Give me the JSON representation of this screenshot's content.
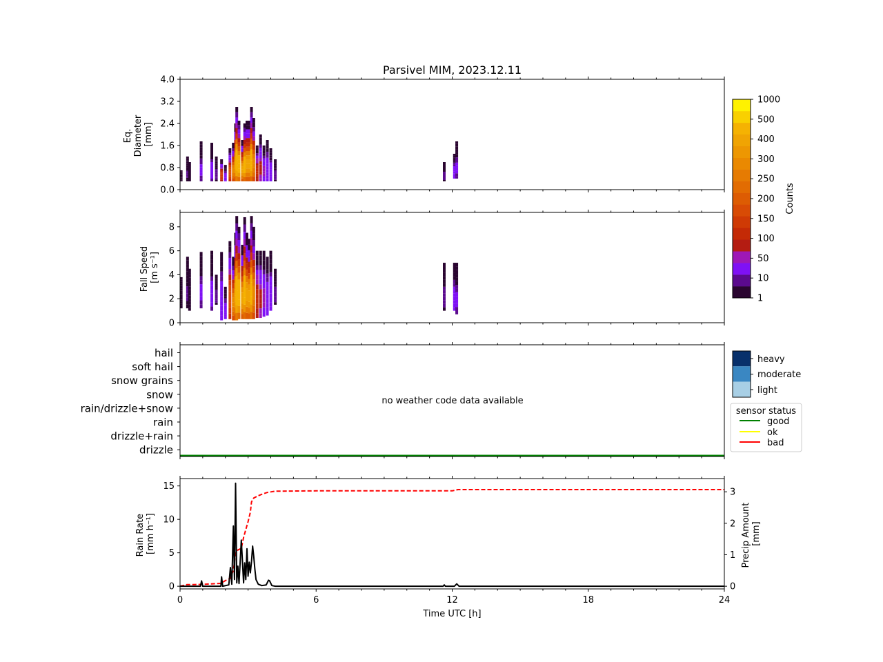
{
  "figure": {
    "title": "Parsivel MIM, 2023.12.11"
  },
  "chart_data": [
    {
      "type": "heatmap",
      "panel": "diameter",
      "ylabel_lines": [
        "Eq.",
        "Diameter",
        "[mm]"
      ],
      "ylim": [
        0,
        4.0
      ],
      "yticks": [
        "0.0",
        "0.8",
        "1.6",
        "2.4",
        "3.2",
        "4.0"
      ],
      "xlim": [
        0,
        24
      ],
      "columns": [
        {
          "t": 0.05,
          "dmin": 0.3,
          "dmax": 0.7,
          "peak": 1
        },
        {
          "t": 0.33,
          "dmin": 0.3,
          "dmax": 1.2,
          "peak": 6
        },
        {
          "t": 0.42,
          "dmin": 0.3,
          "dmax": 1.0,
          "peak": 4
        },
        {
          "t": 0.93,
          "dmin": 0.3,
          "dmax": 1.75,
          "peak": 12
        },
        {
          "t": 1.4,
          "dmin": 0.3,
          "dmax": 1.7,
          "peak": 15
        },
        {
          "t": 1.6,
          "dmin": 0.3,
          "dmax": 1.2,
          "peak": 8
        },
        {
          "t": 1.83,
          "dmin": 0.3,
          "dmax": 1.1,
          "peak": 120
        },
        {
          "t": 2.0,
          "dmin": 0.3,
          "dmax": 0.9,
          "peak": 20
        },
        {
          "t": 2.2,
          "dmin": 0.3,
          "dmax": 1.5,
          "peak": 150
        },
        {
          "t": 2.35,
          "dmin": 0.3,
          "dmax": 1.7,
          "peak": 250
        },
        {
          "t": 2.45,
          "dmin": 0.3,
          "dmax": 2.4,
          "peak": 300
        },
        {
          "t": 2.5,
          "dmin": 0.3,
          "dmax": 3.0,
          "peak": 400
        },
        {
          "t": 2.6,
          "dmin": 0.3,
          "dmax": 2.5,
          "peak": 350
        },
        {
          "t": 2.75,
          "dmin": 0.3,
          "dmax": 1.8,
          "peak": 300
        },
        {
          "t": 2.85,
          "dmin": 0.3,
          "dmax": 2.4,
          "peak": 350
        },
        {
          "t": 2.95,
          "dmin": 0.3,
          "dmax": 2.5,
          "peak": 300
        },
        {
          "t": 3.05,
          "dmin": 0.3,
          "dmax": 2.5,
          "peak": 300
        },
        {
          "t": 3.15,
          "dmin": 0.3,
          "dmax": 3.0,
          "peak": 350
        },
        {
          "t": 3.25,
          "dmin": 0.3,
          "dmax": 2.6,
          "peak": 250
        },
        {
          "t": 3.4,
          "dmin": 0.3,
          "dmax": 1.6,
          "peak": 100
        },
        {
          "t": 3.55,
          "dmin": 0.3,
          "dmax": 2.0,
          "peak": 60
        },
        {
          "t": 3.7,
          "dmin": 0.3,
          "dmax": 1.6,
          "peak": 40
        },
        {
          "t": 3.85,
          "dmin": 0.3,
          "dmax": 1.8,
          "peak": 30
        },
        {
          "t": 4.0,
          "dmin": 0.3,
          "dmax": 1.5,
          "peak": 25
        },
        {
          "t": 4.2,
          "dmin": 0.3,
          "dmax": 1.1,
          "peak": 8
        },
        {
          "t": 11.65,
          "dmin": 0.3,
          "dmax": 1.0,
          "peak": 8
        },
        {
          "t": 12.1,
          "dmin": 0.4,
          "dmax": 1.3,
          "peak": 20
        },
        {
          "t": 12.2,
          "dmin": 0.4,
          "dmax": 1.75,
          "peak": 12
        }
      ]
    },
    {
      "type": "heatmap",
      "panel": "fall-speed",
      "ylabel_lines": [
        "Fall Speed",
        "[m s⁻¹]"
      ],
      "ylim": [
        0,
        9.2
      ],
      "yticks": [
        "0",
        "2",
        "4",
        "6",
        "8"
      ],
      "xlim": [
        0,
        24
      ],
      "columns": [
        {
          "t": 0.05,
          "vmin": 1.2,
          "vmax": 3.8,
          "peak": 1
        },
        {
          "t": 0.33,
          "vmin": 1.2,
          "vmax": 5.5,
          "peak": 6
        },
        {
          "t": 0.42,
          "vmin": 1.0,
          "vmax": 4.5,
          "peak": 4
        },
        {
          "t": 0.93,
          "vmin": 1.2,
          "vmax": 5.9,
          "peak": 12
        },
        {
          "t": 1.4,
          "vmin": 1.0,
          "vmax": 6.0,
          "peak": 15
        },
        {
          "t": 1.6,
          "vmin": 1.5,
          "vmax": 4.0,
          "peak": 8
        },
        {
          "t": 1.83,
          "vmin": 0.2,
          "vmax": 5.9,
          "peak": 30
        },
        {
          "t": 2.0,
          "vmin": 0.3,
          "vmax": 3.0,
          "peak": 20
        },
        {
          "t": 2.2,
          "vmin": 0.3,
          "vmax": 6.8,
          "peak": 150
        },
        {
          "t": 2.35,
          "vmin": 0.2,
          "vmax": 5.5,
          "peak": 250
        },
        {
          "t": 2.45,
          "vmin": 0.2,
          "vmax": 7.5,
          "peak": 300
        },
        {
          "t": 2.5,
          "vmin": 0.2,
          "vmax": 8.9,
          "peak": 400
        },
        {
          "t": 2.6,
          "vmin": 0.3,
          "vmax": 8.0,
          "peak": 350
        },
        {
          "t": 2.75,
          "vmin": 0.3,
          "vmax": 6.5,
          "peak": 300
        },
        {
          "t": 2.85,
          "vmin": 0.3,
          "vmax": 8.8,
          "peak": 350
        },
        {
          "t": 2.95,
          "vmin": 0.3,
          "vmax": 7.5,
          "peak": 300
        },
        {
          "t": 3.05,
          "vmin": 0.3,
          "vmax": 7.0,
          "peak": 300
        },
        {
          "t": 3.15,
          "vmin": 0.3,
          "vmax": 8.9,
          "peak": 350
        },
        {
          "t": 3.25,
          "vmin": 0.3,
          "vmax": 8.0,
          "peak": 250
        },
        {
          "t": 3.4,
          "vmin": 0.4,
          "vmax": 6.0,
          "peak": 100
        },
        {
          "t": 3.55,
          "vmin": 0.4,
          "vmax": 6.0,
          "peak": 60
        },
        {
          "t": 3.7,
          "vmin": 0.5,
          "vmax": 6.0,
          "peak": 40
        },
        {
          "t": 3.85,
          "vmin": 0.6,
          "vmax": 5.5,
          "peak": 30
        },
        {
          "t": 4.0,
          "vmin": 1.0,
          "vmax": 6.0,
          "peak": 25
        },
        {
          "t": 4.2,
          "vmin": 1.5,
          "vmax": 4.5,
          "peak": 8
        },
        {
          "t": 11.65,
          "vmin": 1.0,
          "vmax": 5.0,
          "peak": 8
        },
        {
          "t": 12.1,
          "vmin": 1.0,
          "vmax": 5.0,
          "peak": 20
        },
        {
          "t": 12.2,
          "vmin": 0.7,
          "vmax": 5.0,
          "peak": 12
        }
      ]
    },
    {
      "type": "line",
      "panel": "weather-code",
      "categories": [
        "drizzle",
        "drizzle+rain",
        "rain",
        "rain/drizzle+snow",
        "snow",
        "snow grains",
        "soft hail",
        "hail"
      ],
      "message": "no weather code data available",
      "intensity_legend": [
        "heavy",
        "moderate",
        "light"
      ],
      "sensor_legend_title": "sensor status",
      "sensor_legend": [
        {
          "label": "good",
          "color": "#008000"
        },
        {
          "label": "ok",
          "color": "#ffff00"
        },
        {
          "label": "bad",
          "color": "#ff0000"
        }
      ],
      "sensor_status": [
        {
          "from": 0,
          "to": 24,
          "status": "good"
        }
      ],
      "xlim": [
        0,
        24
      ]
    },
    {
      "type": "line",
      "panel": "rain",
      "ylabel_lines": [
        "Rain Rate",
        "[mm h⁻¹]"
      ],
      "y2label_lines": [
        "Precip Amount",
        "[mm]"
      ],
      "ylim": [
        -0.4,
        16.1
      ],
      "y2lim": [
        -0.085,
        3.42
      ],
      "yticks": [
        "0",
        "5",
        "10",
        "15"
      ],
      "y2ticks": [
        "0",
        "1",
        "2",
        "3"
      ],
      "xlim": [
        0,
        24
      ],
      "xticks": [
        "0",
        "6",
        "12",
        "18",
        "24"
      ],
      "xlabel": "Time UTC [h]",
      "series": [
        {
          "role": "rain_rate",
          "color": "#000000",
          "dash": "solid",
          "x": [
            0,
            0.9,
            0.95,
            1.0,
            1.8,
            1.83,
            1.88,
            2.15,
            2.22,
            2.28,
            2.35,
            2.4,
            2.45,
            2.5,
            2.55,
            2.6,
            2.7,
            2.8,
            2.85,
            2.9,
            2.95,
            3.0,
            3.05,
            3.1,
            3.15,
            3.2,
            3.25,
            3.3,
            3.35,
            3.45,
            3.6,
            3.8,
            3.9,
            3.95,
            4.05,
            4.2,
            11.6,
            11.65,
            11.7,
            12.1,
            12.2,
            12.3,
            24
          ],
          "y": [
            0,
            0,
            0.8,
            0,
            0,
            1.4,
            0,
            0.2,
            2.8,
            0.3,
            9.0,
            1.0,
            15.4,
            0.5,
            3.0,
            0.4,
            6.9,
            0.5,
            3.5,
            1.0,
            5.6,
            1.5,
            3.6,
            2.0,
            3.7,
            6.0,
            4.5,
            2.5,
            1.0,
            0.3,
            0.1,
            0.2,
            0.9,
            0.8,
            0.1,
            0,
            0,
            0.2,
            0,
            0,
            0.35,
            0,
            0
          ]
        },
        {
          "role": "precip_amount",
          "color": "#ff0000",
          "dash": "dashed",
          "axis": "right",
          "x": [
            0,
            0.3,
            0.6,
            1.0,
            1.5,
            1.8,
            2.0,
            2.2,
            2.35,
            2.45,
            2.55,
            2.7,
            2.8,
            2.9,
            3.0,
            3.1,
            3.15,
            3.25,
            3.4,
            3.6,
            3.85,
            4.2,
            6.0,
            12.0,
            12.25,
            18.0,
            24
          ],
          "y": [
            0,
            0.05,
            0.05,
            0.06,
            0.08,
            0.09,
            0.18,
            0.24,
            0.5,
            1.05,
            1.15,
            1.2,
            1.55,
            1.8,
            2.05,
            2.35,
            2.68,
            2.8,
            2.86,
            2.92,
            2.98,
            3.02,
            3.03,
            3.03,
            3.07,
            3.07,
            3.07
          ]
        }
      ]
    }
  ],
  "colorbar": {
    "label": "Counts",
    "ticks": [
      "1",
      "10",
      "50",
      "100",
      "150",
      "200",
      "250",
      "300",
      "400",
      "500",
      "1000"
    ],
    "colors": [
      "#2a0530",
      "#5b0a8e",
      "#7f11f5",
      "#9e18b6",
      "#b41c12",
      "#c42a06",
      "#cf3a05",
      "#d84b05",
      "#dd5c03",
      "#e26c02",
      "#e67b02",
      "#ea8901",
      "#ed9702",
      "#f0a403",
      "#f5b202",
      "#f9d000",
      "#fff200"
    ]
  }
}
